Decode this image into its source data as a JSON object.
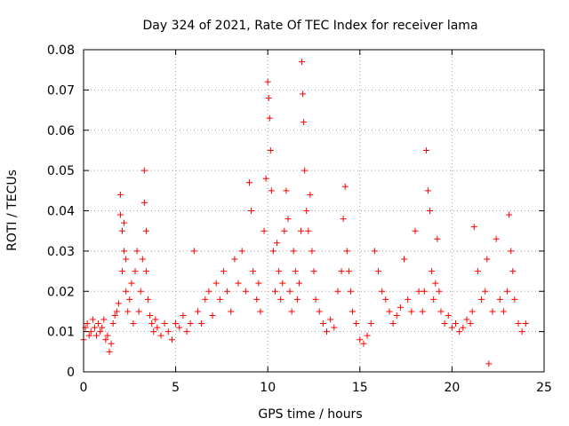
{
  "chart_data": {
    "type": "scatter",
    "title": "Day 324 of 2021, Rate Of TEC Index for receiver lama",
    "xlabel": "GPS time / hours",
    "ylabel": "ROTI / TECUs",
    "xlim": [
      0,
      25
    ],
    "ylim": [
      0,
      0.08
    ],
    "xticks": [
      0,
      5,
      10,
      15,
      20,
      25
    ],
    "xtick_labels": [
      "0",
      "5",
      "10",
      "15",
      "20",
      "25"
    ],
    "yticks": [
      0,
      0.01,
      0.02,
      0.03,
      0.04,
      0.05,
      0.06,
      0.07,
      0.08
    ],
    "ytick_labels": [
      "0",
      "0.01",
      "0.02",
      "0.03",
      "0.04",
      "0.05",
      "0.06",
      "0.07",
      "0.08"
    ],
    "grid": true,
    "marker": "plus",
    "color": "#ff0000",
    "series": [
      {
        "x": [
          0.0,
          0.1,
          0.2,
          0.3,
          0.4,
          0.5,
          0.6,
          0.7,
          0.8,
          0.9,
          1.0,
          1.1,
          1.2,
          1.3,
          1.4,
          1.5,
          1.6,
          1.7,
          1.8,
          1.9,
          2.0,
          2.0,
          2.1,
          2.1,
          2.2,
          2.2,
          2.3,
          2.3,
          2.4,
          2.5,
          2.6,
          2.7,
          2.8,
          2.9,
          3.0,
          3.1,
          3.2,
          3.3,
          3.3,
          3.4,
          3.4,
          3.5,
          3.6,
          3.7,
          3.8,
          3.9,
          4.0,
          4.2,
          4.4,
          4.6,
          4.8,
          5.0,
          5.2,
          5.4,
          5.6,
          5.8,
          6.0,
          6.2,
          6.4,
          6.6,
          6.8,
          7.0,
          7.2,
          7.4,
          7.6,
          7.8,
          8.0,
          8.2,
          8.4,
          8.6,
          8.8,
          9.0,
          9.1,
          9.2,
          9.4,
          9.5,
          9.6,
          9.8,
          9.9,
          10.0,
          10.05,
          10.1,
          10.15,
          10.2,
          10.3,
          10.4,
          10.5,
          10.6,
          10.7,
          10.8,
          10.9,
          11.0,
          11.1,
          11.2,
          11.3,
          11.4,
          11.5,
          11.6,
          11.7,
          11.8,
          11.85,
          11.9,
          11.95,
          12.0,
          12.1,
          12.2,
          12.3,
          12.4,
          12.5,
          12.6,
          12.8,
          13.0,
          13.2,
          13.4,
          13.6,
          13.8,
          14.0,
          14.1,
          14.2,
          14.3,
          14.4,
          14.5,
          14.6,
          14.8,
          15.0,
          15.2,
          15.4,
          15.6,
          15.8,
          16.0,
          16.2,
          16.4,
          16.6,
          16.8,
          17.0,
          17.2,
          17.4,
          17.6,
          17.8,
          18.0,
          18.2,
          18.4,
          18.5,
          18.6,
          18.7,
          18.8,
          18.9,
          19.0,
          19.1,
          19.2,
          19.3,
          19.4,
          19.6,
          19.8,
          20.0,
          20.2,
          20.4,
          20.6,
          20.8,
          21.0,
          21.1,
          21.2,
          21.4,
          21.6,
          21.8,
          21.9,
          22.0,
          22.2,
          22.4,
          22.6,
          22.8,
          23.0,
          23.1,
          23.2,
          23.3,
          23.4,
          23.6,
          23.8,
          24.0
        ],
        "y": [
          0.008,
          0.011,
          0.012,
          0.009,
          0.01,
          0.013,
          0.011,
          0.009,
          0.012,
          0.01,
          0.011,
          0.013,
          0.008,
          0.009,
          0.005,
          0.007,
          0.012,
          0.014,
          0.015,
          0.017,
          0.044,
          0.039,
          0.035,
          0.025,
          0.037,
          0.03,
          0.028,
          0.02,
          0.015,
          0.018,
          0.022,
          0.012,
          0.025,
          0.03,
          0.015,
          0.02,
          0.028,
          0.05,
          0.042,
          0.035,
          0.025,
          0.018,
          0.014,
          0.012,
          0.01,
          0.013,
          0.011,
          0.009,
          0.012,
          0.01,
          0.008,
          0.012,
          0.011,
          0.014,
          0.01,
          0.012,
          0.03,
          0.015,
          0.012,
          0.018,
          0.02,
          0.014,
          0.022,
          0.018,
          0.025,
          0.02,
          0.015,
          0.028,
          0.022,
          0.03,
          0.02,
          0.047,
          0.04,
          0.025,
          0.018,
          0.022,
          0.015,
          0.035,
          0.048,
          0.072,
          0.068,
          0.063,
          0.055,
          0.045,
          0.03,
          0.02,
          0.032,
          0.025,
          0.018,
          0.022,
          0.035,
          0.045,
          0.038,
          0.02,
          0.015,
          0.03,
          0.025,
          0.018,
          0.022,
          0.035,
          0.077,
          0.069,
          0.062,
          0.05,
          0.04,
          0.035,
          0.044,
          0.03,
          0.025,
          0.018,
          0.015,
          0.012,
          0.01,
          0.013,
          0.011,
          0.02,
          0.025,
          0.038,
          0.046,
          0.03,
          0.025,
          0.02,
          0.015,
          0.012,
          0.008,
          0.007,
          0.009,
          0.012,
          0.03,
          0.025,
          0.02,
          0.018,
          0.015,
          0.012,
          0.014,
          0.016,
          0.028,
          0.018,
          0.015,
          0.035,
          0.02,
          0.015,
          0.02,
          0.055,
          0.045,
          0.04,
          0.025,
          0.018,
          0.022,
          0.033,
          0.02,
          0.015,
          0.012,
          0.014,
          0.011,
          0.012,
          0.01,
          0.011,
          0.013,
          0.012,
          0.015,
          0.036,
          0.025,
          0.018,
          0.02,
          0.028,
          0.002,
          0.015,
          0.033,
          0.018,
          0.015,
          0.02,
          0.039,
          0.03,
          0.025,
          0.018,
          0.012,
          0.01,
          0.012
        ]
      }
    ]
  }
}
